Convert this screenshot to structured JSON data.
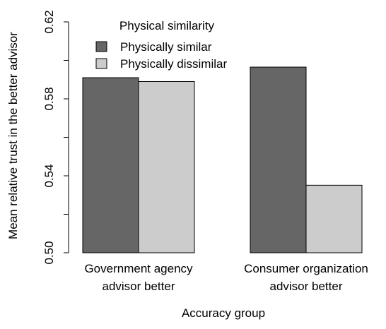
{
  "chart_data": {
    "type": "bar",
    "title": "",
    "xlabel": "Accuracy group",
    "ylabel": "Mean relative trust in the better advisor",
    "ylim": [
      0.5,
      0.62
    ],
    "yticks": [
      0.5,
      0.52,
      0.54,
      0.56,
      0.58,
      0.6,
      0.62
    ],
    "ytick_labels": [
      "0.50",
      "",
      "0.54",
      "",
      "0.58",
      "",
      "0.62"
    ],
    "categories": [
      [
        "Government agency",
        "advisor better"
      ],
      [
        "Consumer organization",
        "advisor better"
      ]
    ],
    "series": [
      {
        "name": "Physically similar",
        "color": "#666666",
        "values": [
          0.591,
          0.5965
        ]
      },
      {
        "name": "Physically dissimilar",
        "color": "#cccccc",
        "values": [
          0.589,
          0.5351
        ]
      }
    ],
    "legend": {
      "title": "Physical similarity",
      "position": "top-left"
    },
    "grid": false
  }
}
